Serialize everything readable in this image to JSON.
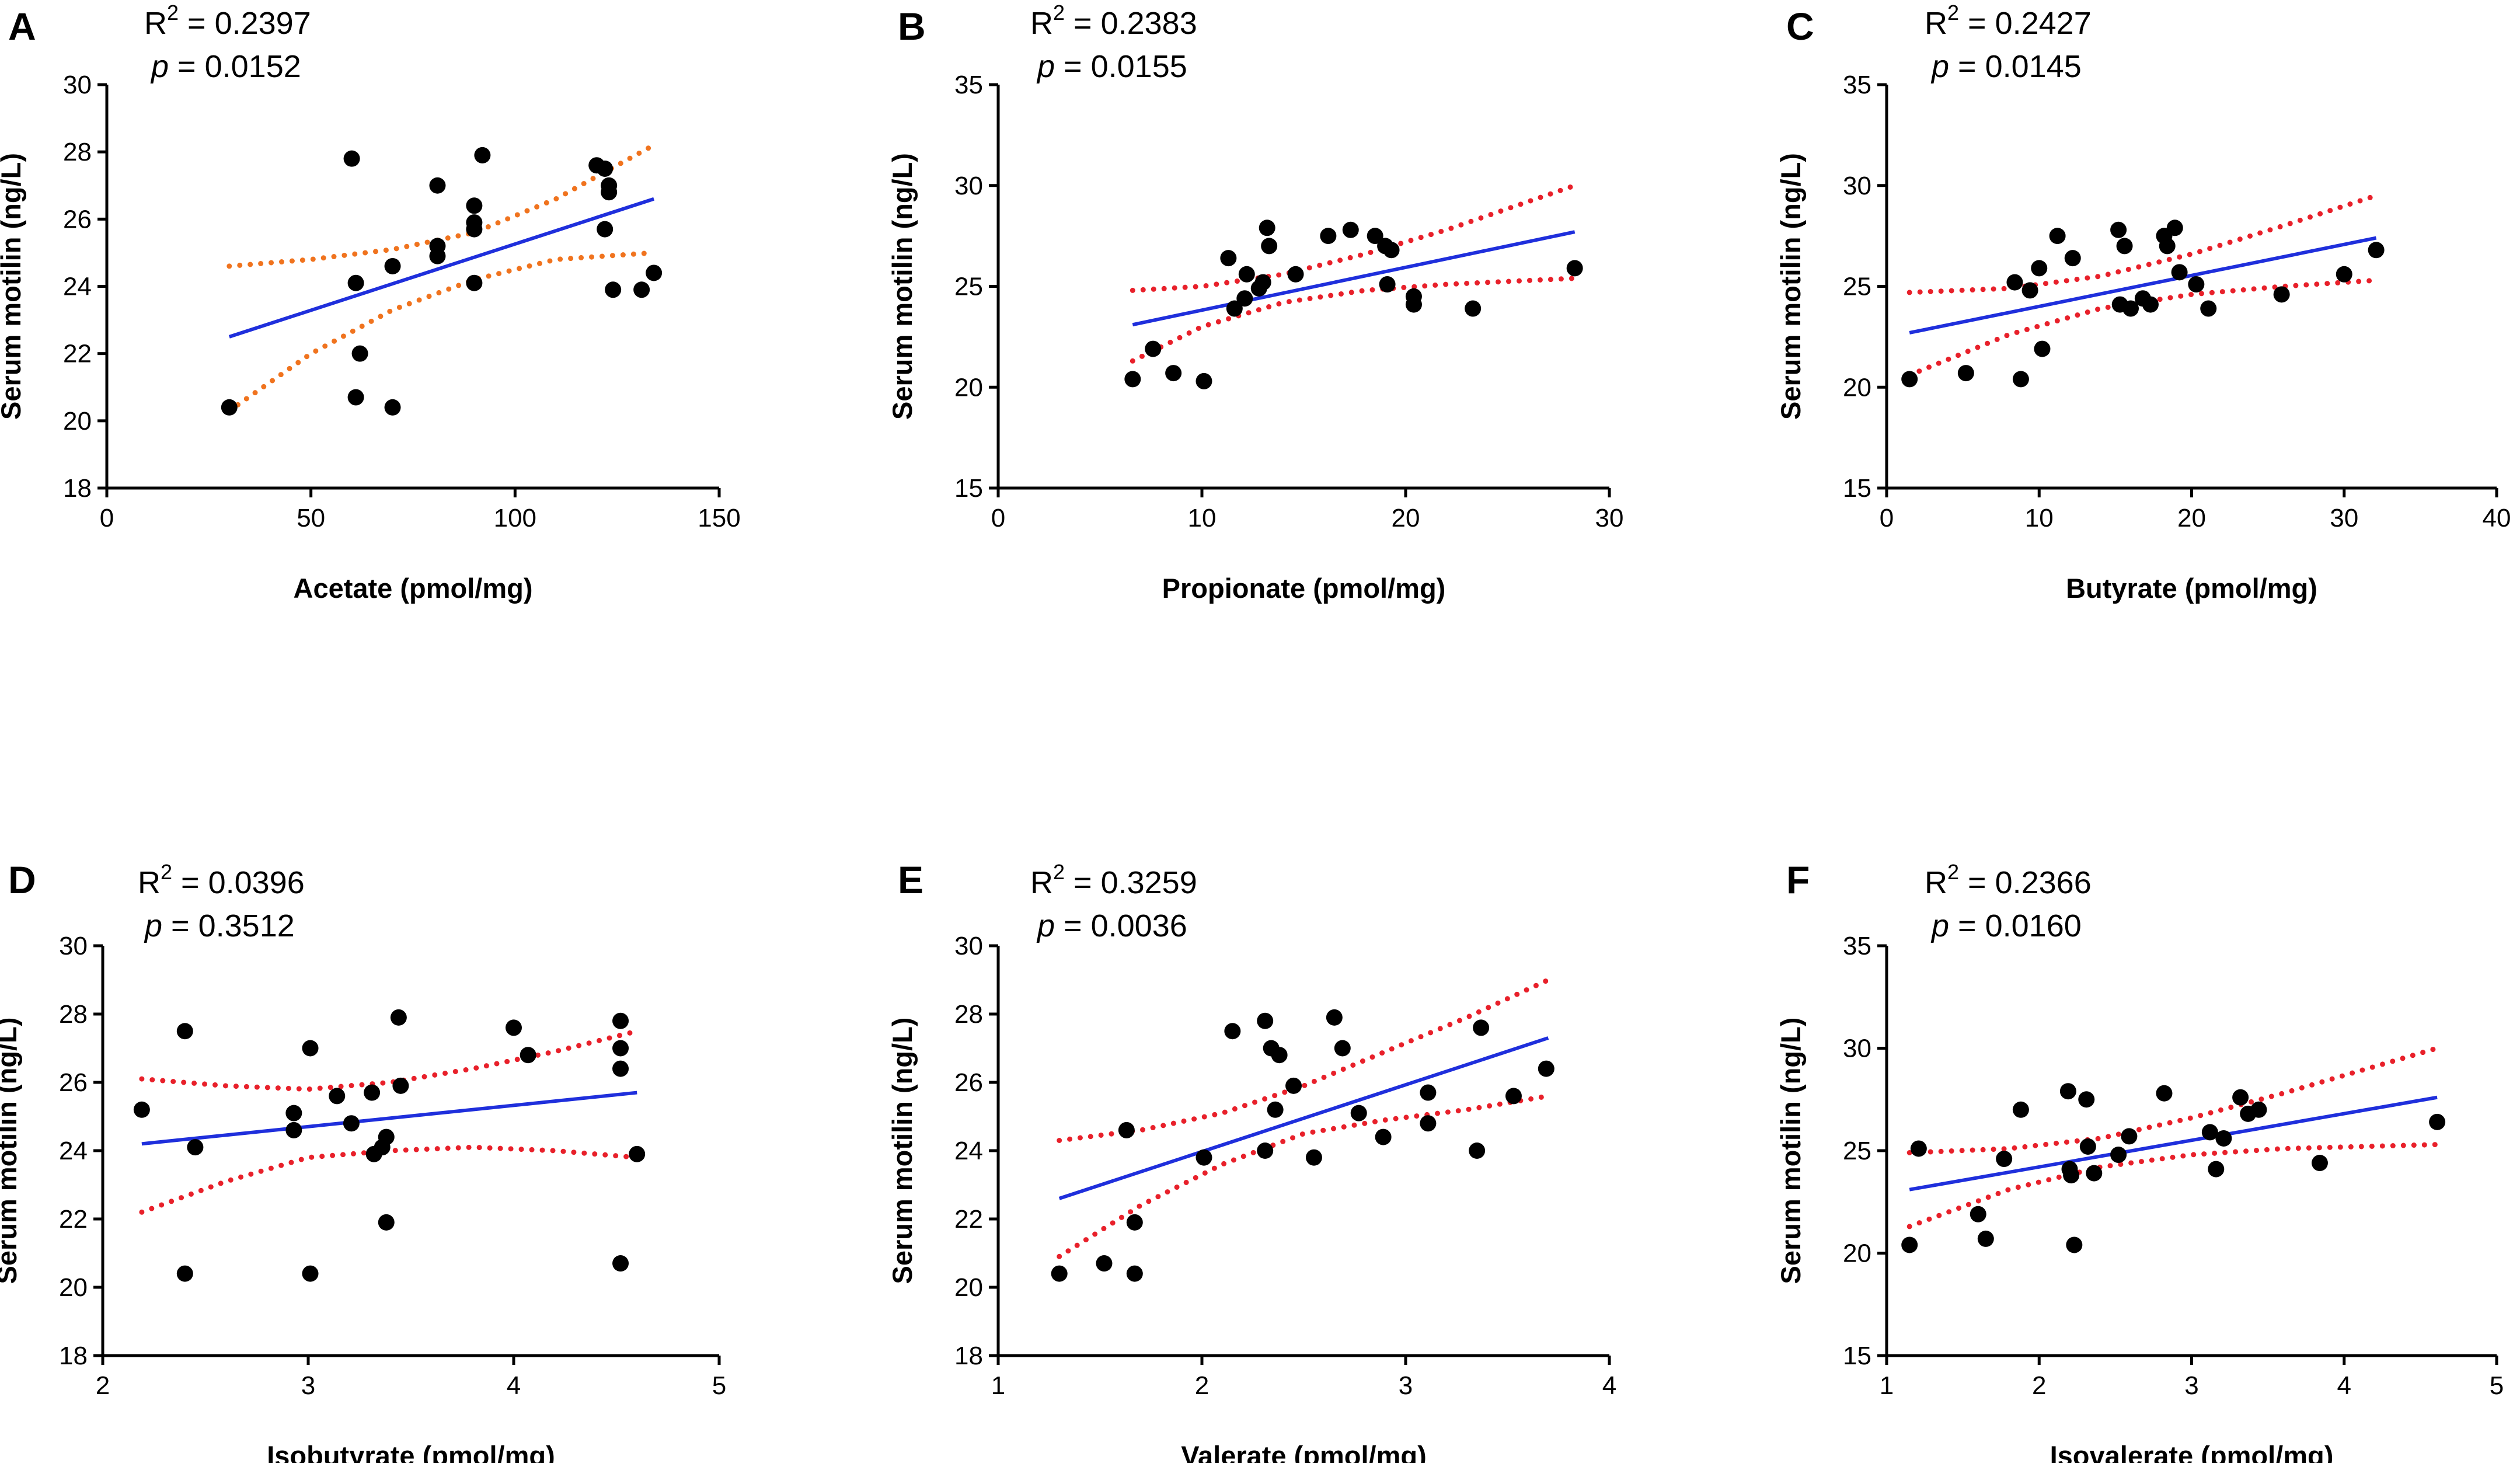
{
  "figure": {
    "ylabel": "Serum motilin (ng/L)",
    "colors": {
      "points": "#000000",
      "fit_line": "#1f2fdc",
      "ci_orange": "#f0731e",
      "ci_red": "#e8202a"
    }
  },
  "chart_data": [
    {
      "type": "scatter",
      "panel": "A",
      "stats": {
        "r2_label": "R",
        "r2_sup": "2",
        "r2_value": " = 0.2397",
        "p_label": "p",
        "p_value": " = 0.0152"
      },
      "title": "",
      "xlabel": "Acetate (pmol/mg)",
      "ylabel": "Serum motilin (ng/L)",
      "xlim": [
        0,
        150
      ],
      "ylim": [
        18,
        30
      ],
      "xticks": [
        0,
        50,
        100,
        150
      ],
      "yticks": [
        18,
        20,
        22,
        24,
        26,
        28,
        30
      ],
      "ci_color": "#f0731e",
      "points": [
        {
          "x": 30,
          "y": 20.4
        },
        {
          "x": 60,
          "y": 27.8
        },
        {
          "x": 61,
          "y": 24.1
        },
        {
          "x": 62,
          "y": 22.0
        },
        {
          "x": 61,
          "y": 20.7
        },
        {
          "x": 70,
          "y": 24.6
        },
        {
          "x": 70,
          "y": 20.4
        },
        {
          "x": 81,
          "y": 27.0
        },
        {
          "x": 81,
          "y": 25.2
        },
        {
          "x": 81,
          "y": 24.9
        },
        {
          "x": 90,
          "y": 26.4
        },
        {
          "x": 90,
          "y": 25.9
        },
        {
          "x": 90,
          "y": 25.7
        },
        {
          "x": 90,
          "y": 24.1
        },
        {
          "x": 92,
          "y": 27.9
        },
        {
          "x": 120,
          "y": 27.6
        },
        {
          "x": 122,
          "y": 27.5
        },
        {
          "x": 123,
          "y": 27.0
        },
        {
          "x": 123,
          "y": 26.8
        },
        {
          "x": 122,
          "y": 25.7
        },
        {
          "x": 124,
          "y": 23.9
        },
        {
          "x": 131,
          "y": 23.9
        },
        {
          "x": 134,
          "y": 24.4
        }
      ],
      "fit": {
        "x": [
          30,
          134
        ],
        "y": [
          22.5,
          26.6
        ]
      },
      "ci_upper": {
        "x": [
          30,
          50,
          70,
          90,
          110,
          134
        ],
        "y": [
          24.6,
          24.8,
          25.1,
          25.6,
          26.6,
          28.2
        ]
      },
      "ci_lower": {
        "x": [
          30,
          50,
          70,
          90,
          110,
          134
        ],
        "y": [
          20.3,
          22.0,
          23.3,
          24.2,
          24.8,
          25.0
        ]
      }
    },
    {
      "type": "scatter",
      "panel": "B",
      "stats": {
        "r2_label": "R",
        "r2_sup": "2",
        "r2_value": " = 0.2383",
        "p_label": "p",
        "p_value": " = 0.0155"
      },
      "title": "",
      "xlabel": "Propionate (pmol/mg)",
      "ylabel": "Serum motilin (ng/L)",
      "xlim": [
        0,
        30
      ],
      "ylim": [
        15,
        35
      ],
      "xticks": [
        0,
        10,
        20,
        30
      ],
      "yticks": [
        15,
        20,
        25,
        30,
        35
      ],
      "ci_color": "#e8202a",
      "points": [
        {
          "x": 6.6,
          "y": 20.4
        },
        {
          "x": 7.6,
          "y": 21.9
        },
        {
          "x": 8.6,
          "y": 20.7
        },
        {
          "x": 10.1,
          "y": 20.3
        },
        {
          "x": 11.3,
          "y": 26.4
        },
        {
          "x": 11.6,
          "y": 23.9
        },
        {
          "x": 12.1,
          "y": 24.4
        },
        {
          "x": 12.2,
          "y": 25.6
        },
        {
          "x": 12.8,
          "y": 24.9
        },
        {
          "x": 13.0,
          "y": 25.2
        },
        {
          "x": 13.2,
          "y": 27.9
        },
        {
          "x": 13.3,
          "y": 27.0
        },
        {
          "x": 14.6,
          "y": 25.6
        },
        {
          "x": 16.2,
          "y": 27.5
        },
        {
          "x": 17.3,
          "y": 27.8
        },
        {
          "x": 18.5,
          "y": 27.5
        },
        {
          "x": 19.0,
          "y": 27.0
        },
        {
          "x": 19.3,
          "y": 26.8
        },
        {
          "x": 19.1,
          "y": 25.1
        },
        {
          "x": 20.4,
          "y": 24.5
        },
        {
          "x": 20.4,
          "y": 24.1
        },
        {
          "x": 23.3,
          "y": 23.9
        },
        {
          "x": 28.3,
          "y": 25.9
        }
      ],
      "fit": {
        "x": [
          6.6,
          28.3
        ],
        "y": [
          23.1,
          27.7
        ]
      },
      "ci_upper": {
        "x": [
          6.6,
          10,
          14,
          18,
          22,
          28.3
        ],
        "y": [
          24.8,
          25.0,
          25.6,
          26.6,
          27.8,
          30.0
        ]
      },
      "ci_lower": {
        "x": [
          6.6,
          10,
          14,
          18,
          22,
          28.3
        ],
        "y": [
          21.3,
          23.0,
          24.2,
          24.8,
          25.1,
          25.4
        ]
      }
    },
    {
      "type": "scatter",
      "panel": "C",
      "stats": {
        "r2_label": "R",
        "r2_sup": "2",
        "r2_value": " = 0.2427",
        "p_label": "p",
        "p_value": " = 0.0145"
      },
      "title": "",
      "xlabel": "Butyrate (pmol/mg)",
      "ylabel": "Serum motilin (ng/L)",
      "xlim": [
        0,
        40
      ],
      "ylim": [
        15,
        35
      ],
      "xticks": [
        0,
        10,
        20,
        30,
        40
      ],
      "yticks": [
        15,
        20,
        25,
        30,
        35
      ],
      "ci_color": "#e8202a",
      "points": [
        {
          "x": 1.5,
          "y": 20.4
        },
        {
          "x": 5.2,
          "y": 20.7
        },
        {
          "x": 8.4,
          "y": 25.2
        },
        {
          "x": 8.8,
          "y": 20.4
        },
        {
          "x": 9.4,
          "y": 24.8
        },
        {
          "x": 10.0,
          "y": 25.9
        },
        {
          "x": 10.2,
          "y": 21.9
        },
        {
          "x": 11.2,
          "y": 27.5
        },
        {
          "x": 12.2,
          "y": 26.4
        },
        {
          "x": 15.2,
          "y": 27.8
        },
        {
          "x": 15.3,
          "y": 24.1
        },
        {
          "x": 15.6,
          "y": 27.0
        },
        {
          "x": 16.0,
          "y": 23.9
        },
        {
          "x": 16.8,
          "y": 24.4
        },
        {
          "x": 17.3,
          "y": 24.1
        },
        {
          "x": 18.2,
          "y": 27.5
        },
        {
          "x": 18.4,
          "y": 27.0
        },
        {
          "x": 18.9,
          "y": 27.9
        },
        {
          "x": 19.2,
          "y": 25.7
        },
        {
          "x": 20.3,
          "y": 25.1
        },
        {
          "x": 21.1,
          "y": 23.9
        },
        {
          "x": 25.9,
          "y": 24.6
        },
        {
          "x": 30.0,
          "y": 25.6
        },
        {
          "x": 32.1,
          "y": 26.8
        }
      ],
      "fit": {
        "x": [
          1.5,
          32.1
        ],
        "y": [
          22.7,
          27.4
        ]
      },
      "ci_upper": {
        "x": [
          1.5,
          8,
          14,
          20,
          26,
          32.1
        ],
        "y": [
          24.7,
          24.9,
          25.5,
          26.6,
          28.0,
          29.5
        ]
      },
      "ci_lower": {
        "x": [
          1.5,
          8,
          14,
          20,
          26,
          32.1
        ],
        "y": [
          20.6,
          22.6,
          23.9,
          24.6,
          25.0,
          25.3
        ]
      }
    },
    {
      "type": "scatter",
      "panel": "D",
      "stats": {
        "r2_label": "R",
        "r2_sup": "2",
        "r2_value": " = 0.0396",
        "p_label": "p",
        "p_value": " = 0.3512"
      },
      "title": "",
      "xlabel": "Isobutyrate (pmol/mg)",
      "ylabel": "Serum motilin (ng/L)",
      "xlim": [
        2,
        5
      ],
      "ylim": [
        18,
        30
      ],
      "xticks": [
        2,
        3,
        4,
        5
      ],
      "yticks": [
        18,
        20,
        22,
        24,
        26,
        28,
        30
      ],
      "ci_color": "#e8202a",
      "points": [
        {
          "x": 2.19,
          "y": 25.2
        },
        {
          "x": 2.4,
          "y": 27.5
        },
        {
          "x": 2.4,
          "y": 20.4
        },
        {
          "x": 2.45,
          "y": 24.1
        },
        {
          "x": 2.93,
          "y": 25.1
        },
        {
          "x": 2.93,
          "y": 24.6
        },
        {
          "x": 3.01,
          "y": 27.0
        },
        {
          "x": 3.01,
          "y": 20.4
        },
        {
          "x": 3.14,
          "y": 25.6
        },
        {
          "x": 3.21,
          "y": 24.8
        },
        {
          "x": 3.31,
          "y": 25.7
        },
        {
          "x": 3.32,
          "y": 23.9
        },
        {
          "x": 3.36,
          "y": 24.1
        },
        {
          "x": 3.38,
          "y": 24.4
        },
        {
          "x": 3.38,
          "y": 21.9
        },
        {
          "x": 3.44,
          "y": 27.9
        },
        {
          "x": 3.45,
          "y": 25.9
        },
        {
          "x": 4.0,
          "y": 27.6
        },
        {
          "x": 4.07,
          "y": 26.8
        },
        {
          "x": 4.52,
          "y": 27.8
        },
        {
          "x": 4.52,
          "y": 27.0
        },
        {
          "x": 4.52,
          "y": 26.4
        },
        {
          "x": 4.52,
          "y": 20.7
        },
        {
          "x": 4.6,
          "y": 23.9
        }
      ],
      "fit": {
        "x": [
          2.19,
          4.6
        ],
        "y": [
          24.2,
          25.7
        ]
      },
      "ci_upper": {
        "x": [
          2.19,
          2.6,
          3.0,
          3.4,
          3.8,
          4.2,
          4.6
        ],
        "y": [
          26.1,
          25.9,
          25.8,
          26.0,
          26.4,
          26.9,
          27.5
        ]
      },
      "ci_lower": {
        "x": [
          2.19,
          2.6,
          3.0,
          3.4,
          3.8,
          4.2,
          4.6
        ],
        "y": [
          22.2,
          23.1,
          23.8,
          24.0,
          24.1,
          24.0,
          23.8
        ]
      }
    },
    {
      "type": "scatter",
      "panel": "E",
      "stats": {
        "r2_label": "R",
        "r2_sup": "2",
        "r2_value": " = 0.3259",
        "p_label": "p",
        "p_value": " = 0.0036"
      },
      "title": "",
      "xlabel": "Valerate (pmol/mg)",
      "ylabel": "Serum motilin (ng/L)",
      "xlim": [
        1,
        4
      ],
      "ylim": [
        18,
        30
      ],
      "xticks": [
        1,
        2,
        3,
        4
      ],
      "yticks": [
        18,
        20,
        22,
        24,
        26,
        28,
        30
      ],
      "ci_color": "#e8202a",
      "points": [
        {
          "x": 1.3,
          "y": 20.4
        },
        {
          "x": 1.52,
          "y": 20.7
        },
        {
          "x": 1.63,
          "y": 24.6
        },
        {
          "x": 1.67,
          "y": 21.9
        },
        {
          "x": 1.67,
          "y": 20.4
        },
        {
          "x": 2.01,
          "y": 23.8
        },
        {
          "x": 2.15,
          "y": 27.5
        },
        {
          "x": 2.31,
          "y": 27.8
        },
        {
          "x": 2.31,
          "y": 24.0
        },
        {
          "x": 2.34,
          "y": 27.0
        },
        {
          "x": 2.36,
          "y": 25.2
        },
        {
          "x": 2.38,
          "y": 26.8
        },
        {
          "x": 2.45,
          "y": 25.9
        },
        {
          "x": 2.55,
          "y": 23.8
        },
        {
          "x": 2.65,
          "y": 27.9
        },
        {
          "x": 2.69,
          "y": 27.0
        },
        {
          "x": 2.77,
          "y": 25.1
        },
        {
          "x": 2.89,
          "y": 24.4
        },
        {
          "x": 3.11,
          "y": 25.7
        },
        {
          "x": 3.11,
          "y": 24.8
        },
        {
          "x": 3.35,
          "y": 24.0
        },
        {
          "x": 3.37,
          "y": 27.6
        },
        {
          "x": 3.53,
          "y": 25.6
        },
        {
          "x": 3.69,
          "y": 26.4
        }
      ],
      "fit": {
        "x": [
          1.3,
          3.7
        ],
        "y": [
          22.6,
          27.3
        ]
      },
      "ci_upper": {
        "x": [
          1.3,
          1.7,
          2.1,
          2.5,
          2.9,
          3.3,
          3.7
        ],
        "y": [
          24.3,
          24.6,
          25.1,
          25.9,
          26.9,
          27.9,
          29.0
        ]
      },
      "ci_lower": {
        "x": [
          1.3,
          1.7,
          2.1,
          2.5,
          2.9,
          3.3,
          3.7
        ],
        "y": [
          20.9,
          22.4,
          23.6,
          24.5,
          24.9,
          25.2,
          25.6
        ]
      }
    },
    {
      "type": "scatter",
      "panel": "F",
      "stats": {
        "r2_label": "R",
        "r2_sup": "2",
        "r2_value": " = 0.2366",
        "p_label": "p",
        "p_value": " = 0.0160"
      },
      "title": "",
      "xlabel": "Isovalerate (pmol/mg)",
      "ylabel": "Serum motilin (ng/L)",
      "xlim": [
        1,
        5
      ],
      "ylim": [
        15,
        35
      ],
      "xticks": [
        1,
        2,
        3,
        4,
        5
      ],
      "yticks": [
        15,
        20,
        25,
        30,
        35
      ],
      "ci_color": "#e8202a",
      "points": [
        {
          "x": 1.15,
          "y": 20.4
        },
        {
          "x": 1.21,
          "y": 25.1
        },
        {
          "x": 1.6,
          "y": 21.9
        },
        {
          "x": 1.65,
          "y": 20.7
        },
        {
          "x": 1.77,
          "y": 24.6
        },
        {
          "x": 1.88,
          "y": 27.0
        },
        {
          "x": 2.19,
          "y": 27.9
        },
        {
          "x": 2.2,
          "y": 24.1
        },
        {
          "x": 2.21,
          "y": 23.8
        },
        {
          "x": 2.23,
          "y": 20.4
        },
        {
          "x": 2.31,
          "y": 27.5
        },
        {
          "x": 2.32,
          "y": 25.2
        },
        {
          "x": 2.36,
          "y": 23.9
        },
        {
          "x": 2.52,
          "y": 24.8
        },
        {
          "x": 2.59,
          "y": 25.7
        },
        {
          "x": 2.82,
          "y": 27.8
        },
        {
          "x": 3.12,
          "y": 25.9
        },
        {
          "x": 3.16,
          "y": 24.1
        },
        {
          "x": 3.21,
          "y": 25.6
        },
        {
          "x": 3.32,
          "y": 27.6
        },
        {
          "x": 3.37,
          "y": 26.8
        },
        {
          "x": 3.44,
          "y": 27.0
        },
        {
          "x": 3.84,
          "y": 24.4
        },
        {
          "x": 4.61,
          "y": 26.4
        }
      ],
      "fit": {
        "x": [
          1.15,
          4.61
        ],
        "y": [
          23.1,
          27.6
        ]
      },
      "ci_upper": {
        "x": [
          1.15,
          1.8,
          2.4,
          3.0,
          3.6,
          4.61
        ],
        "y": [
          24.9,
          25.1,
          25.6,
          26.6,
          27.8,
          30.0
        ]
      },
      "ci_lower": {
        "x": [
          1.15,
          1.8,
          2.4,
          3.0,
          3.6,
          4.61
        ],
        "y": [
          21.3,
          23.1,
          24.2,
          24.8,
          25.1,
          25.3
        ]
      }
    }
  ]
}
